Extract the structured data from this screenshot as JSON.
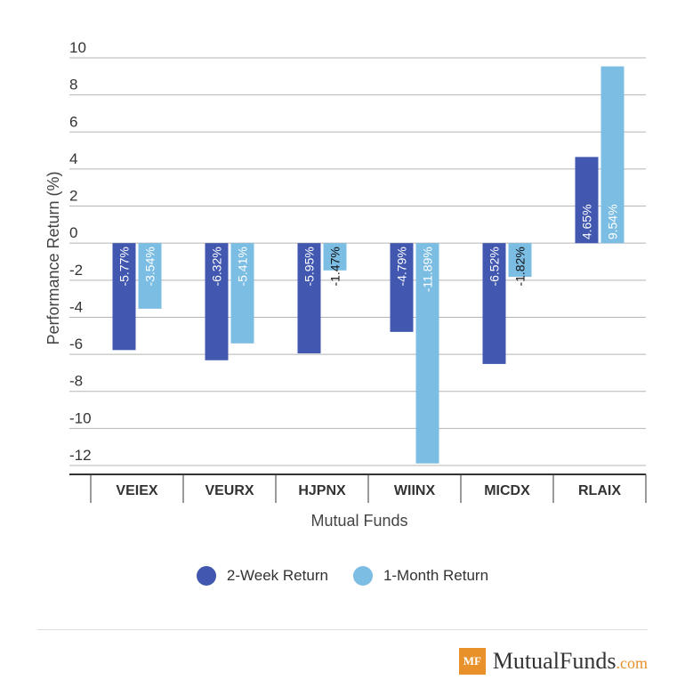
{
  "colors": {
    "series1": "#4157b0",
    "series2": "#7cbde3",
    "grid": "#b5b5b5",
    "axis": "#333333"
  },
  "chart_data": {
    "type": "bar",
    "categories": [
      "VEIEX",
      "VEURX",
      "HJPNX",
      "WIINX",
      "MICDX",
      "RLAIX"
    ],
    "series": [
      {
        "name": "2-Week Return",
        "values": [
          -5.77,
          -6.32,
          -5.95,
          -4.79,
          -6.52,
          4.65
        ],
        "labels": [
          "-5.77%",
          "-6.32%",
          "-5.95%",
          "-4.79%",
          "-6.52%",
          "4.65%"
        ]
      },
      {
        "name": "1-Month Return",
        "values": [
          -3.54,
          -5.41,
          -1.47,
          -11.89,
          -1.82,
          9.54
        ],
        "labels": [
          "-3.54%",
          "-5.41%",
          "-1.47%",
          "-11.89%",
          "-1.82%",
          "9.54%"
        ]
      }
    ],
    "yticks": [
      10,
      8,
      6,
      4,
      2,
      0,
      -2,
      -4,
      -6,
      -8,
      -10,
      -12
    ],
    "ylim": [
      -12,
      10
    ],
    "xlabel": "Mutual Funds",
    "ylabel": "Performance Return (%)",
    "grid": true,
    "legend": "bottom"
  },
  "legend": {
    "item1": "2-Week Return",
    "item2": "1-Month Return"
  },
  "brand": {
    "mark": "MF",
    "name": "MutualFunds",
    "tld": ".com"
  }
}
